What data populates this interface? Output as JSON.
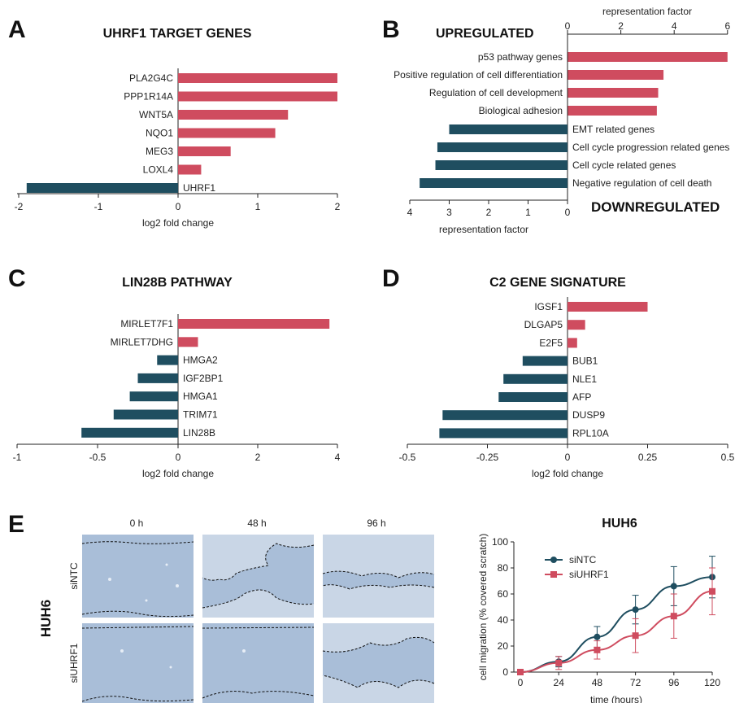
{
  "colors": {
    "up": "#cf4c5f",
    "down": "#1f4e60",
    "scratch_bg": "#a9bed8",
    "scratch_cell": "#c9d6e6",
    "line": "#333333"
  },
  "panels": {
    "A": {
      "letter": "A",
      "title": "UHRF1 TARGET GENES",
      "xlabel": "log2 fold change",
      "ticks": [
        "-2",
        "-1",
        "0",
        "1",
        "2"
      ]
    },
    "B": {
      "letter": "B",
      "title_up": "UPREGULATED",
      "title_down": "DOWNREGULATED",
      "top_axis_label": "representation factor",
      "bottom_axis_label": "representation factor",
      "top_ticks": [
        "0",
        "2",
        "4",
        "6"
      ],
      "bottom_ticks": [
        "4",
        "3",
        "2",
        "1",
        "0"
      ]
    },
    "C": {
      "letter": "C",
      "title": "LIN28B PATHWAY",
      "xlabel": "log2 fold change",
      "ticks": [
        "-1",
        "-0.5",
        "0",
        "2",
        "4"
      ]
    },
    "D": {
      "letter": "D",
      "title": "C2 GENE SIGNATURE",
      "xlabel": "log2 fold change",
      "ticks": [
        "-0.5",
        "-0.25",
        "0",
        "0.25",
        "0.5"
      ]
    },
    "E": {
      "letter": "E",
      "row_group_label": "HUH6",
      "col_labels": [
        "0 h",
        "48 h",
        "96 h"
      ],
      "row_labels": [
        "siNTC",
        "siUHRF1"
      ],
      "line_title": "HUH6",
      "ylabel": "cell migration (% covered scratch)",
      "xlabel": "time (hours)",
      "yticks": [
        "0",
        "20",
        "40",
        "60",
        "80",
        "100"
      ],
      "xticks": [
        "0",
        "24",
        "48",
        "72",
        "96",
        "120"
      ],
      "legend": [
        "siNTC",
        "siUHRF1"
      ]
    }
  },
  "chart_data": [
    {
      "panel": "A",
      "type": "bar",
      "orientation": "horizontal",
      "title": "UHRF1 TARGET GENES",
      "xlabel": "log2 fold change",
      "xlim": [
        -2,
        2
      ],
      "categories": [
        "PLA2G4C",
        "PPP1R14A",
        "WNT5A",
        "NQO1",
        "MEG3",
        "LOXL4",
        "UHRF1"
      ],
      "values": [
        2.0,
        2.0,
        1.38,
        1.22,
        0.66,
        0.29,
        -1.9
      ]
    },
    {
      "panel": "B",
      "type": "bar",
      "orientation": "horizontal",
      "up": {
        "title": "UPREGULATED",
        "xlabel": "representation factor",
        "xlim": [
          0,
          6
        ],
        "categories": [
          "p53 pathway genes",
          "Positive regulation of cell differentiation",
          "Regulation of cell development",
          "Biological adhesion"
        ],
        "values": [
          6.0,
          3.6,
          3.4,
          3.35
        ]
      },
      "down": {
        "title": "DOWNREGULATED",
        "xlabel": "representation factor",
        "xlim": [
          0,
          4
        ],
        "categories": [
          "EMT related genes",
          "Cell cycle progression related genes",
          "Cell cycle related genes",
          "Negative regulation of cell death"
        ],
        "values": [
          3.0,
          3.3,
          3.35,
          3.75
        ]
      }
    },
    {
      "panel": "C",
      "type": "bar",
      "orientation": "horizontal",
      "title": "LIN28B PATHWAY",
      "xlabel": "log2 fold change",
      "xticks": [
        -1,
        -0.5,
        0,
        2,
        4
      ],
      "categories": [
        "MIRLET7F1",
        "MIRLET7DHG",
        "HMGA2",
        "IGF2BP1",
        "HMGA1",
        "TRIM71",
        "LIN28B"
      ],
      "values": [
        3.8,
        0.5,
        -0.13,
        -0.25,
        -0.3,
        -0.4,
        -0.6
      ]
    },
    {
      "panel": "D",
      "type": "bar",
      "orientation": "horizontal",
      "title": "C2 GENE SIGNATURE",
      "xlabel": "log2 fold change",
      "xlim": [
        -0.5,
        0.5
      ],
      "categories": [
        "IGSF1",
        "DLGAP5",
        "E2F5",
        "BUB1",
        "NLE1",
        "AFP",
        "DUSP9",
        "RPL10A"
      ],
      "values": [
        0.25,
        0.055,
        0.03,
        -0.14,
        -0.2,
        -0.215,
        -0.39,
        -0.4
      ]
    },
    {
      "panel": "E",
      "type": "line",
      "title": "HUH6",
      "xlabel": "time (hours)",
      "ylabel": "cell migration (% covered scratch)",
      "xlim": [
        0,
        120
      ],
      "ylim": [
        0,
        100
      ],
      "x": [
        0,
        24,
        48,
        72,
        96,
        120
      ],
      "series": [
        {
          "name": "siNTC",
          "values": [
            0,
            8,
            27,
            48,
            66,
            73
          ],
          "err": [
            0,
            4,
            8,
            11,
            15,
            16
          ]
        },
        {
          "name": "siUHRF1",
          "values": [
            0,
            7,
            17,
            28,
            43,
            62
          ],
          "err": [
            0,
            5,
            7,
            13,
            17,
            18
          ]
        }
      ]
    }
  ]
}
